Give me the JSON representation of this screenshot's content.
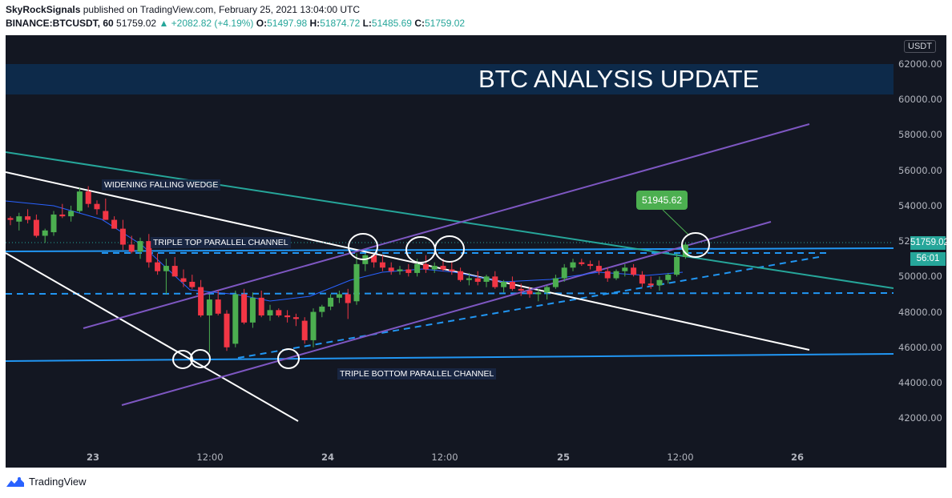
{
  "header": {
    "author": "SkyRockSignals",
    "published_text": "published on TradingView.com, February 25, 2021 13:04:00 UTC",
    "symbol": "BINANCE:BTCUSDT, 60",
    "last": "51759.02",
    "change": "+2082.82 (+4.19%)",
    "o_label": "O:",
    "o_value": "51497.98",
    "h_label": "H:",
    "h_value": "51874.72",
    "l_label": "L:",
    "l_value": "51485.69",
    "c_label": "C:",
    "c_value": "51759.02"
  },
  "banner": {
    "text": "BTC ANALYSIS UPDATE"
  },
  "annotations": {
    "widening": "WIDENING FALLING WEDGE",
    "triple_top": "TRIPLE TOP PARALLEL CHANNEL",
    "triple_bottom": "TRIPLE BOTTOM PARALLEL CHANNEL",
    "callout_price": "51945.62"
  },
  "yaxis": {
    "currency": "USDT",
    "ticks": [
      "62000.00",
      "60000.00",
      "58000.00",
      "56000.00",
      "54000.00",
      "52000.00",
      "50000.00",
      "48000.00",
      "46000.00",
      "44000.00",
      "42000.00"
    ],
    "current_price": "51759.02",
    "countdown": "56:01"
  },
  "xaxis": {
    "ticks": [
      {
        "label": "23",
        "bold": true
      },
      {
        "label": "12:00",
        "bold": false
      },
      {
        "label": "24",
        "bold": true
      },
      {
        "label": "12:00",
        "bold": false
      },
      {
        "label": "25",
        "bold": true
      },
      {
        "label": "12:00",
        "bold": false
      },
      {
        "label": "26",
        "bold": true
      }
    ]
  },
  "footer": {
    "brand": "TradingView"
  },
  "colors": {
    "up": "#4caf50",
    "down": "#f23645",
    "background": "#131722",
    "accent": "#26a69a"
  },
  "chart_data": {
    "type": "candlestick",
    "interval": "60",
    "ylim": [
      41000,
      63000
    ],
    "candles_ohlc": [
      [
        53300,
        53400,
        52900,
        53200
      ],
      [
        53100,
        53600,
        52600,
        53400
      ],
      [
        53400,
        53800,
        53000,
        53200
      ],
      [
        53200,
        53500,
        52200,
        52300
      ],
      [
        52300,
        52700,
        51900,
        52600
      ],
      [
        52500,
        53700,
        52300,
        53500
      ],
      [
        53500,
        54100,
        53300,
        53400
      ],
      [
        53400,
        54000,
        53100,
        53700
      ],
      [
        53700,
        55000,
        53600,
        54800
      ],
      [
        54800,
        55100,
        53900,
        54100
      ],
      [
        54100,
        54300,
        53500,
        53800
      ],
      [
        53700,
        54400,
        53200,
        53200
      ],
      [
        53200,
        53400,
        52700,
        52700
      ],
      [
        52700,
        53200,
        51500,
        51800
      ],
      [
        51800,
        52300,
        51300,
        51400
      ],
      [
        51400,
        52200,
        51000,
        52000
      ],
      [
        52000,
        52400,
        50500,
        50800
      ],
      [
        50800,
        51300,
        50100,
        50300
      ],
      [
        50300,
        51000,
        49000,
        50600
      ],
      [
        50600,
        51100,
        50100,
        50000
      ],
      [
        49900,
        50400,
        49400,
        49700
      ],
      [
        49700,
        50100,
        49300,
        49400
      ],
      [
        49400,
        49800,
        47700,
        47800
      ],
      [
        47800,
        49000,
        45700,
        48700
      ],
      [
        48700,
        49200,
        47800,
        47900
      ],
      [
        47900,
        48100,
        45800,
        46000
      ],
      [
        46200,
        49200,
        46000,
        49000
      ],
      [
        49000,
        49300,
        47300,
        47400
      ],
      [
        47400,
        49100,
        47100,
        48800
      ],
      [
        48800,
        49200,
        47700,
        47800
      ],
      [
        47800,
        48400,
        47500,
        48100
      ],
      [
        48100,
        48200,
        47700,
        47800
      ],
      [
        47800,
        48100,
        47400,
        47700
      ],
      [
        47700,
        47900,
        47200,
        47600
      ],
      [
        47500,
        47700,
        46200,
        46400
      ],
      [
        46400,
        48200,
        46000,
        48000
      ],
      [
        48000,
        48400,
        47700,
        48300
      ],
      [
        48300,
        49000,
        48100,
        48800
      ],
      [
        48800,
        49200,
        48500,
        49000
      ],
      [
        49000,
        49300,
        47600,
        48500
      ],
      [
        48600,
        51300,
        48400,
        50700
      ],
      [
        50700,
        51300,
        50300,
        51200
      ],
      [
        51200,
        51300,
        50500,
        50800
      ],
      [
        50800,
        51200,
        50300,
        50500
      ],
      [
        50500,
        50800,
        50100,
        50300
      ],
      [
        50300,
        50600,
        50100,
        50400
      ],
      [
        50400,
        50700,
        50000,
        50200
      ],
      [
        50200,
        51000,
        50000,
        50700
      ],
      [
        50700,
        51200,
        50200,
        50400
      ],
      [
        50400,
        50800,
        50200,
        50600
      ],
      [
        50600,
        51000,
        50300,
        50400
      ],
      [
        50400,
        50800,
        50100,
        50300
      ],
      [
        50300,
        50500,
        49700,
        49800
      ],
      [
        49800,
        50200,
        49500,
        49900
      ],
      [
        49900,
        50300,
        49500,
        49700
      ],
      [
        49700,
        50100,
        49400,
        50000
      ],
      [
        50000,
        50300,
        49300,
        49400
      ],
      [
        49400,
        49800,
        49100,
        49700
      ],
      [
        49700,
        50000,
        49200,
        49300
      ],
      [
        49300,
        49600,
        48900,
        49200
      ],
      [
        49200,
        49400,
        48800,
        49000
      ],
      [
        49000,
        49300,
        48600,
        49100
      ],
      [
        49100,
        49500,
        48700,
        49400
      ],
      [
        49400,
        50100,
        49300,
        49900
      ],
      [
        49900,
        50700,
        49700,
        50500
      ],
      [
        50500,
        51000,
        50300,
        50800
      ],
      [
        50800,
        51000,
        50600,
        50700
      ],
      [
        50700,
        50900,
        50400,
        50600
      ],
      [
        50600,
        50900,
        50100,
        50300
      ],
      [
        50300,
        50500,
        49700,
        49900
      ],
      [
        49900,
        50400,
        49800,
        50300
      ],
      [
        50300,
        50700,
        50000,
        50500
      ],
      [
        50500,
        50700,
        50000,
        50100
      ],
      [
        50100,
        50300,
        49400,
        49600
      ],
      [
        49600,
        50000,
        49300,
        49500
      ],
      [
        49500,
        50000,
        49200,
        49800
      ],
      [
        49800,
        50200,
        49600,
        50100
      ],
      [
        50100,
        51300,
        50000,
        51100
      ],
      [
        51100,
        51900,
        51000,
        51800
      ]
    ],
    "trendlines": [
      {
        "name": "WIDENING FALLING WEDGE",
        "color": "#26a69a"
      },
      {
        "name": "TRIPLE TOP PARALLEL CHANNEL",
        "color": "#2196f3"
      },
      {
        "name": "TRIPLE BOTTOM PARALLEL CHANNEL",
        "color": "#2196f3"
      }
    ]
  }
}
